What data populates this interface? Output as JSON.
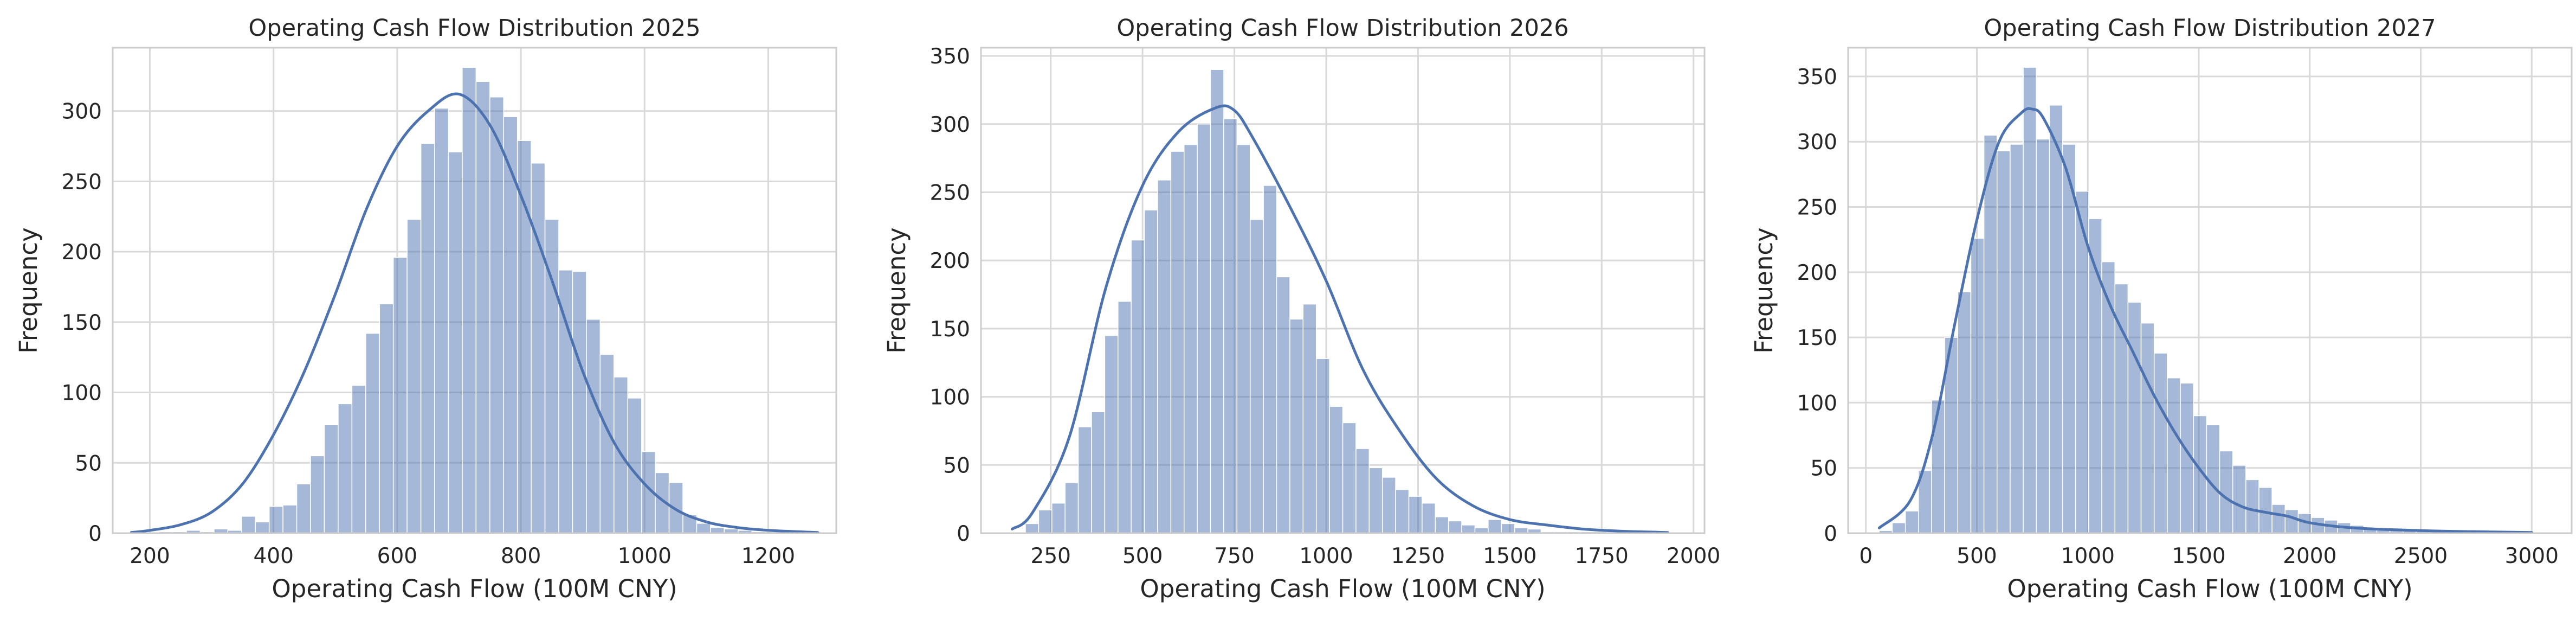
{
  "chart_data": [
    {
      "type": "histogram",
      "title": "Operating Cash Flow Distribution 2025",
      "xlabel": "Operating Cash Flow (100M CNY)",
      "ylabel": "Frequency",
      "xlim": [
        140,
        1310
      ],
      "ylim": [
        0,
        345
      ],
      "xticks": [
        200,
        400,
        600,
        800,
        1000,
        1200
      ],
      "yticks": [
        0,
        50,
        100,
        150,
        200,
        250,
        300
      ],
      "grid": true,
      "bar_color": "#4C72B0",
      "kde_color": "#4C72B0",
      "bin_start": 170,
      "bin_width": 22.3,
      "counts": [
        0,
        0,
        1,
        1,
        2,
        1,
        3,
        2,
        12,
        8,
        19,
        20,
        35,
        55,
        77,
        92,
        105,
        142,
        163,
        196,
        223,
        277,
        302,
        271,
        331,
        321,
        310,
        296,
        279,
        263,
        223,
        187,
        186,
        152,
        127,
        111,
        96,
        58,
        43,
        36,
        13,
        7,
        4,
        3,
        2,
        1,
        1,
        1,
        1,
        1
      ],
      "kde_x": [
        170,
        200,
        250,
        300,
        350,
        400,
        450,
        500,
        550,
        600,
        650,
        700,
        750,
        800,
        850,
        900,
        950,
        1000,
        1050,
        1100,
        1150,
        1200,
        1250,
        1280
      ],
      "kde_y": [
        0.5,
        2,
        6,
        15,
        35,
        70,
        115,
        170,
        230,
        275,
        300,
        312,
        290,
        240,
        180,
        115,
        65,
        35,
        17,
        8,
        4,
        2,
        1,
        0.5
      ]
    },
    {
      "type": "histogram",
      "title": "Operating Cash Flow Distribution 2026",
      "xlabel": "Operating Cash Flow (100M CNY)",
      "ylabel": "Frequency",
      "xlim": [
        60,
        2030
      ],
      "ylim": [
        0,
        356
      ],
      "xticks": [
        250,
        500,
        750,
        1000,
        1250,
        1500,
        1750,
        2000
      ],
      "yticks": [
        0,
        50,
        100,
        150,
        200,
        250,
        300,
        350
      ],
      "grid": true,
      "bar_color": "#4C72B0",
      "kde_color": "#4C72B0",
      "bin_start": 145,
      "bin_width": 36,
      "counts": [
        0,
        7,
        17,
        22,
        37,
        78,
        89,
        145,
        170,
        215,
        237,
        259,
        280,
        285,
        300,
        340,
        304,
        285,
        230,
        255,
        188,
        157,
        168,
        128,
        93,
        81,
        62,
        48,
        41,
        32,
        27,
        22,
        12,
        9,
        6,
        4,
        10,
        7,
        4,
        3,
        1,
        1,
        1,
        1,
        1,
        1,
        1,
        1
      ],
      "kde_x": [
        145,
        200,
        300,
        400,
        500,
        600,
        700,
        750,
        800,
        900,
        1000,
        1100,
        1200,
        1300,
        1400,
        1500,
        1600,
        1700,
        1800,
        1930
      ],
      "kde_y": [
        3,
        15,
        70,
        180,
        255,
        295,
        312,
        310,
        290,
        240,
        185,
        120,
        75,
        40,
        20,
        10,
        6,
        3,
        1.5,
        0.5
      ]
    },
    {
      "type": "histogram",
      "title": "Operating Cash Flow Distribution 2027",
      "xlabel": "Operating Cash Flow (100M CNY)",
      "ylabel": "Frequency",
      "xlim": [
        -80,
        3180
      ],
      "ylim": [
        0,
        372
      ],
      "xticks": [
        0,
        500,
        1000,
        1500,
        2000,
        2500,
        3000
      ],
      "yticks": [
        0,
        50,
        100,
        150,
        200,
        250,
        300,
        350
      ],
      "grid": true,
      "bar_color": "#4C72B0",
      "kde_color": "#4C72B0",
      "bin_start": 60,
      "bin_width": 59,
      "counts": [
        2,
        8,
        17,
        48,
        102,
        150,
        185,
        226,
        305,
        293,
        298,
        357,
        302,
        328,
        298,
        262,
        241,
        208,
        191,
        177,
        161,
        138,
        119,
        115,
        90,
        83,
        63,
        52,
        41,
        35,
        22,
        18,
        15,
        12,
        10,
        8,
        6,
        4,
        3,
        3,
        2,
        2,
        2,
        1,
        1,
        1,
        1,
        1,
        1,
        1
      ],
      "kde_x": [
        60,
        200,
        300,
        400,
        500,
        600,
        700,
        750,
        800,
        900,
        1000,
        1100,
        1200,
        1300,
        1400,
        1500,
        1600,
        1700,
        1800,
        1900,
        2000,
        2200,
        2500,
        2800,
        3000
      ],
      "kde_y": [
        4,
        25,
        75,
        160,
        240,
        300,
        322,
        325,
        318,
        280,
        220,
        175,
        140,
        105,
        75,
        50,
        30,
        20,
        16,
        13,
        8,
        4,
        2,
        1,
        0.5
      ]
    }
  ]
}
